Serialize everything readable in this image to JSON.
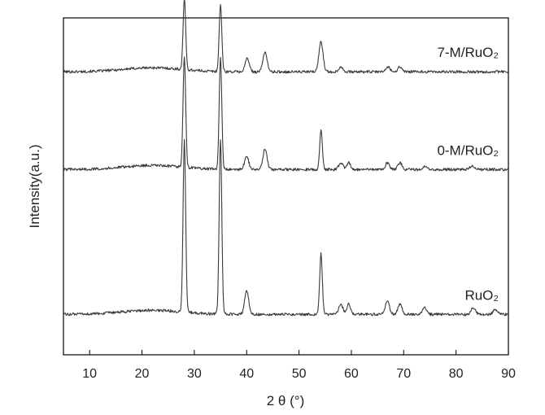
{
  "chart_data": {
    "type": "line",
    "title": "",
    "xlabel": "2 θ (°)",
    "ylabel": "Intensity(a.u.)",
    "xlim": [
      5,
      90
    ],
    "xticks": [
      10,
      20,
      30,
      40,
      50,
      60,
      70,
      80,
      90
    ],
    "y_tick_labels_shown": false,
    "grid": false,
    "legend": "none; series labels placed inline above each trace on the right",
    "series": [
      {
        "name": "7-M/RuO₂",
        "baseline": 0.84,
        "peaks": [
          {
            "x": 28.1,
            "height": 0.21
          },
          {
            "x": 35.0,
            "height": 0.2
          },
          {
            "x": 40.1,
            "height": 0.04
          },
          {
            "x": 43.5,
            "height": 0.06
          },
          {
            "x": 54.2,
            "height": 0.09
          },
          {
            "x": 58.0,
            "height": 0.015
          },
          {
            "x": 67.0,
            "height": 0.015
          },
          {
            "x": 69.3,
            "height": 0.015
          }
        ]
      },
      {
        "name": "0-M/RuO₂",
        "baseline": 0.55,
        "peaks": [
          {
            "x": 28.1,
            "height": 0.33
          },
          {
            "x": 35.0,
            "height": 0.33
          },
          {
            "x": 40.0,
            "height": 0.04
          },
          {
            "x": 43.5,
            "height": 0.06
          },
          {
            "x": 54.2,
            "height": 0.12
          },
          {
            "x": 58.0,
            "height": 0.02
          },
          {
            "x": 59.5,
            "height": 0.02
          },
          {
            "x": 66.9,
            "height": 0.02
          },
          {
            "x": 69.3,
            "height": 0.02
          },
          {
            "x": 74.0,
            "height": 0.01
          },
          {
            "x": 83.0,
            "height": 0.01
          }
        ]
      },
      {
        "name": "RuO₂",
        "baseline": 0.12,
        "peaks": [
          {
            "x": 28.1,
            "height": 0.51
          },
          {
            "x": 35.0,
            "height": 0.52
          },
          {
            "x": 40.0,
            "height": 0.07
          },
          {
            "x": 54.2,
            "height": 0.18
          },
          {
            "x": 58.0,
            "height": 0.03
          },
          {
            "x": 59.5,
            "height": 0.03
          },
          {
            "x": 66.9,
            "height": 0.04
          },
          {
            "x": 69.3,
            "height": 0.03
          },
          {
            "x": 74.0,
            "height": 0.02
          },
          {
            "x": 83.3,
            "height": 0.02
          },
          {
            "x": 87.5,
            "height": 0.015
          }
        ]
      }
    ]
  }
}
